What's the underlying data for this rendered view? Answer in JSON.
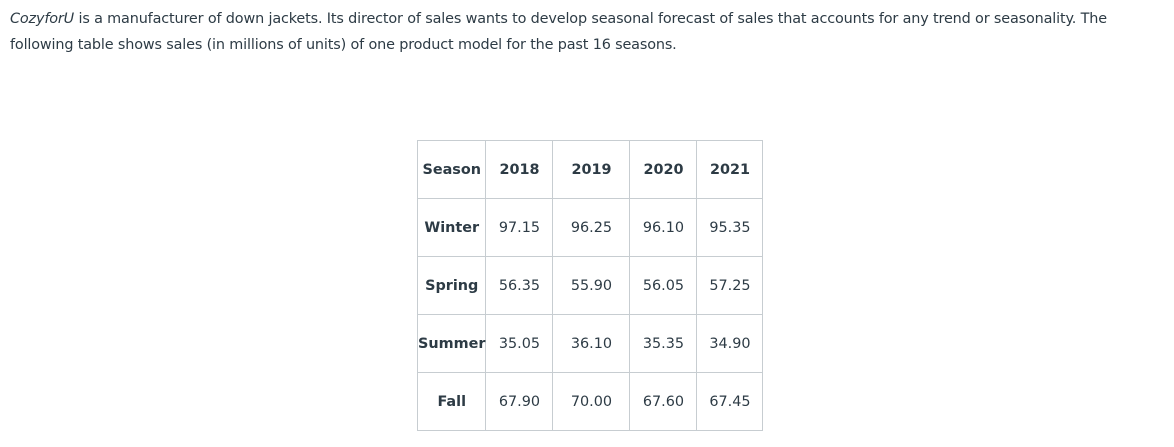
{
  "intro": {
    "company": "CozyforU",
    "rest": " is a manufacturer of down jackets. Its director of sales wants to develop seasonal forecast of sales that accounts for any trend or seasonality. The following table shows sales (in millions of units) of one product model for the past 16 seasons."
  },
  "table": {
    "headers": [
      "Season",
      "2018",
      "2019",
      "2020",
      "2021"
    ],
    "rows": [
      {
        "season": "Winter",
        "values": [
          "97.15",
          "96.25",
          "96.10",
          "95.35"
        ]
      },
      {
        "season": "Spring",
        "values": [
          "56.35",
          "55.90",
          "56.05",
          "57.25"
        ]
      },
      {
        "season": "Summer",
        "values": [
          "35.05",
          "36.10",
          "35.35",
          "34.90"
        ]
      },
      {
        "season": "Fall",
        "values": [
          "67.90",
          "70.00",
          "67.60",
          "67.45"
        ]
      }
    ]
  }
}
